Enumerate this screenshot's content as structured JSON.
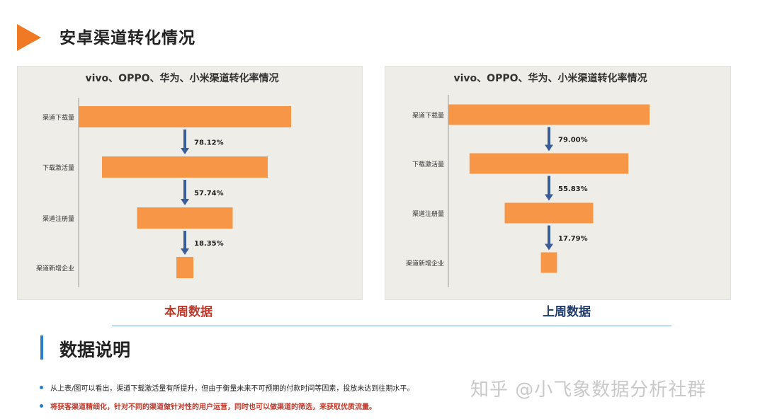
{
  "page_title": "安卓渠道转化情况",
  "accent_color": "#f07a23",
  "section_title": "数据说明",
  "notes": [
    "从上表/图可以看出，渠道下载激活量有所提升，但由于衡量未来不可预期的付款时间等因素，投放未达到往期水平。",
    "将获客渠道精细化，针对不同的渠道做针对性的用户运营，同时也可以做渠道的筛选，来获取优质流量。"
  ],
  "watermark": "知乎 @小飞象数据分析社群",
  "chart_data": [
    {
      "type": "funnel",
      "title": "vivo、OPPO、华为、小米渠道转化率情况",
      "period_label": "本周数据",
      "stages": [
        "渠道下载量",
        "下载激活量",
        "渠道注册量",
        "渠道新增企业"
      ],
      "relative_widths": [
        1.0,
        0.78,
        0.45,
        0.08
      ],
      "conversion_rates": [
        "78.12%",
        "57.74%",
        "18.35%"
      ],
      "bar_color": "#f79646",
      "arrow_color": "#3a5c98"
    },
    {
      "type": "funnel",
      "title": "vivo、OPPO、华为、小米渠道转化率情况",
      "period_label": "上周数据",
      "stages": [
        "渠道下载量",
        "下载激活量",
        "渠道注册量",
        "渠道新增企业"
      ],
      "relative_widths": [
        1.0,
        0.79,
        0.44,
        0.08
      ],
      "conversion_rates": [
        "79.00%",
        "55.83%",
        "17.79%"
      ],
      "bar_color": "#f79646",
      "arrow_color": "#3a5c98"
    }
  ]
}
